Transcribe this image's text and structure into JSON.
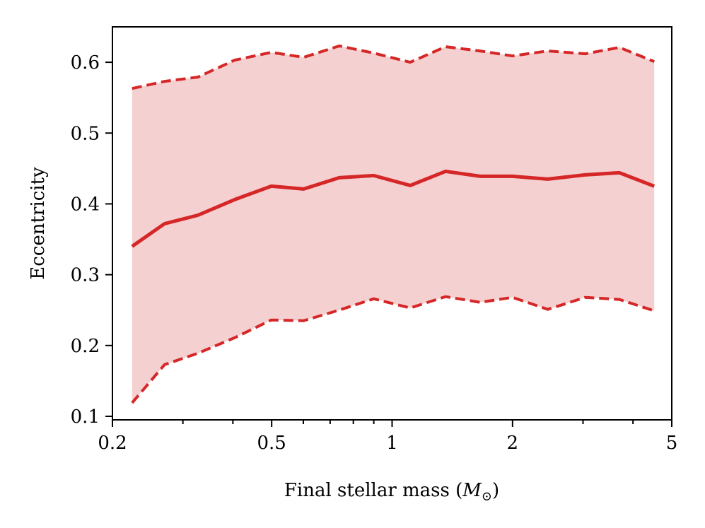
{
  "chart_data": {
    "type": "line",
    "xlabel": "Final stellar mass (M⊙)",
    "xlabel_text": "Final stellar mass (",
    "xlabel_symbol": "M",
    "xlabel_sub": "⊙",
    "xlabel_close": ")",
    "ylabel": "Eccentricity",
    "xscale": "log",
    "xlim": [
      0.2,
      5
    ],
    "ylim": [
      0.095,
      0.65
    ],
    "x_ticks": [
      {
        "value": 0.2,
        "label": "0.2"
      },
      {
        "value": 0.5,
        "label": "0.5"
      },
      {
        "value": 1,
        "label": "1"
      },
      {
        "value": 2,
        "label": "2"
      },
      {
        "value": 5,
        "label": "5"
      }
    ],
    "x_minor_ticks": [
      0.3,
      0.4,
      0.6,
      0.7,
      0.8,
      0.9,
      3,
      4
    ],
    "y_ticks": [
      {
        "value": 0.1,
        "label": "0.1"
      },
      {
        "value": 0.2,
        "label": "0.2"
      },
      {
        "value": 0.3,
        "label": "0.3"
      },
      {
        "value": 0.4,
        "label": "0.4"
      },
      {
        "value": 0.5,
        "label": "0.5"
      },
      {
        "value": 0.6,
        "label": "0.6"
      }
    ],
    "grid": false,
    "color": "#d62728",
    "fill_color": "#f5d0d0",
    "x": [
      0.224,
      0.27,
      0.327,
      0.404,
      0.499,
      0.601,
      0.738,
      0.9,
      1.11,
      1.36,
      1.66,
      2.0,
      2.45,
      3.04,
      3.7,
      4.52
    ],
    "series": [
      {
        "role": "upper",
        "style": "dashed",
        "values": [
          0.563,
          0.573,
          0.579,
          0.603,
          0.614,
          0.607,
          0.623,
          0.613,
          0.6,
          0.622,
          0.616,
          0.609,
          0.616,
          0.612,
          0.621,
          0.601
        ]
      },
      {
        "role": "median",
        "style": "solid",
        "values": [
          0.34,
          0.372,
          0.384,
          0.406,
          0.425,
          0.421,
          0.437,
          0.44,
          0.426,
          0.446,
          0.439,
          0.439,
          0.435,
          0.441,
          0.444,
          0.425
        ]
      },
      {
        "role": "lower",
        "style": "dashed",
        "values": [
          0.119,
          0.173,
          0.189,
          0.211,
          0.236,
          0.235,
          0.25,
          0.266,
          0.253,
          0.269,
          0.261,
          0.268,
          0.251,
          0.268,
          0.265,
          0.249
        ]
      }
    ]
  }
}
